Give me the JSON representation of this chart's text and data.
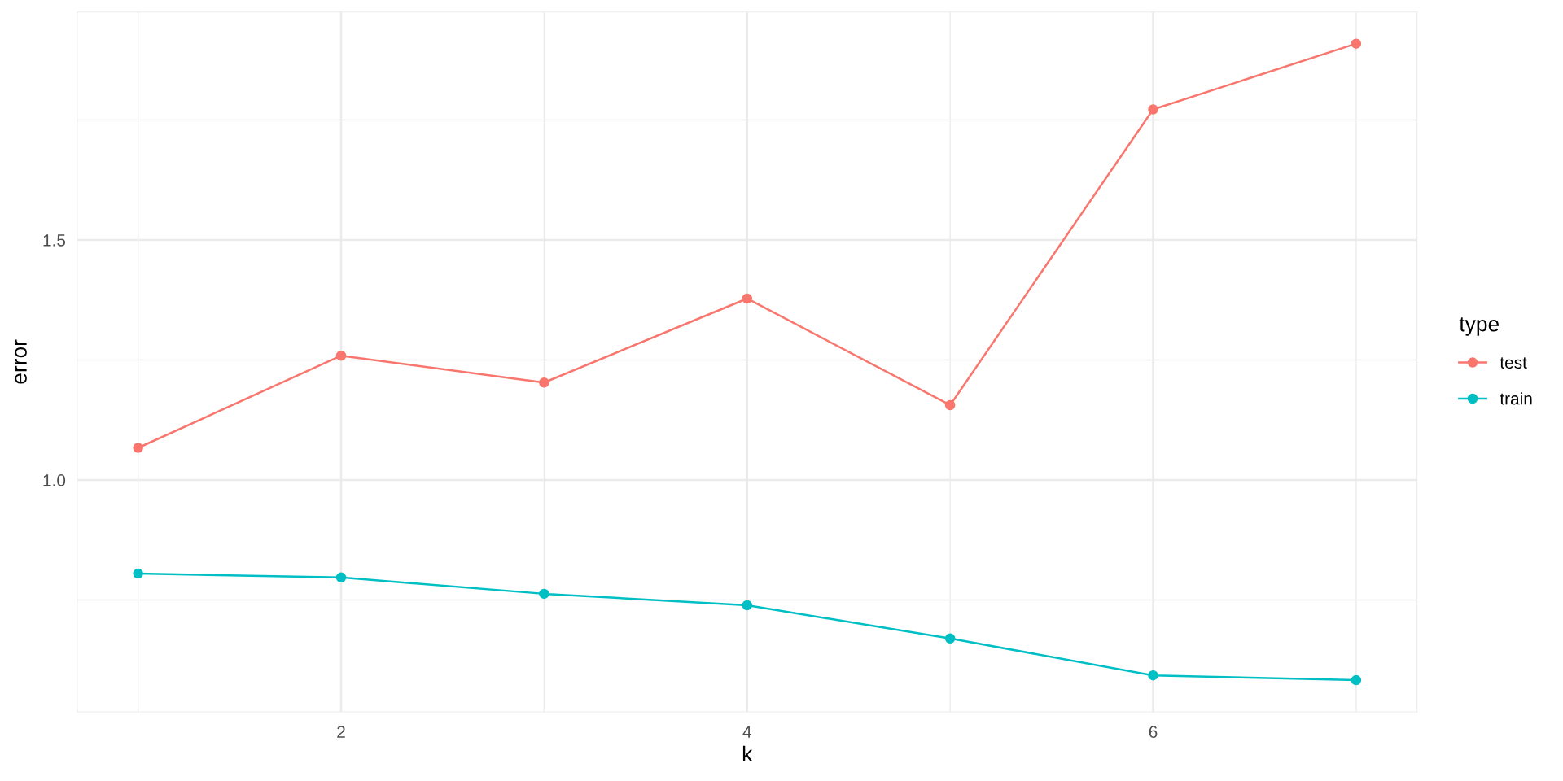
{
  "chart_data": {
    "type": "line",
    "xlabel": "k",
    "ylabel": "error",
    "x": [
      1,
      2,
      3,
      4,
      5,
      6,
      7
    ],
    "series": [
      {
        "name": "test",
        "color": "#f8766d",
        "values": [
          1.067,
          1.259,
          1.203,
          1.378,
          1.156,
          1.772,
          1.909
        ]
      },
      {
        "name": "train",
        "color": "#00bfc4",
        "values": [
          0.805,
          0.797,
          0.763,
          0.739,
          0.67,
          0.593,
          0.583
        ]
      }
    ],
    "xlim": [
      0.7,
      7.3
    ],
    "ylim": [
      0.517,
      1.975
    ],
    "xticks": [
      {
        "value": 1,
        "label": null
      },
      2,
      {
        "value": 3,
        "label": null
      },
      4,
      {
        "value": 5,
        "label": null
      },
      6,
      {
        "value": 7,
        "label": null
      }
    ],
    "yticks": [
      {
        "value": 0.75,
        "label": null
      },
      {
        "value": 1,
        "label": "1.0"
      },
      {
        "value": 1.25,
        "label": null
      },
      {
        "value": 1.5,
        "label": "1.5"
      },
      {
        "value": 1.75,
        "label": null
      }
    ],
    "grid": true,
    "legend": "right",
    "legend_title": "type",
    "marker": "circle",
    "line_style": "solid"
  }
}
